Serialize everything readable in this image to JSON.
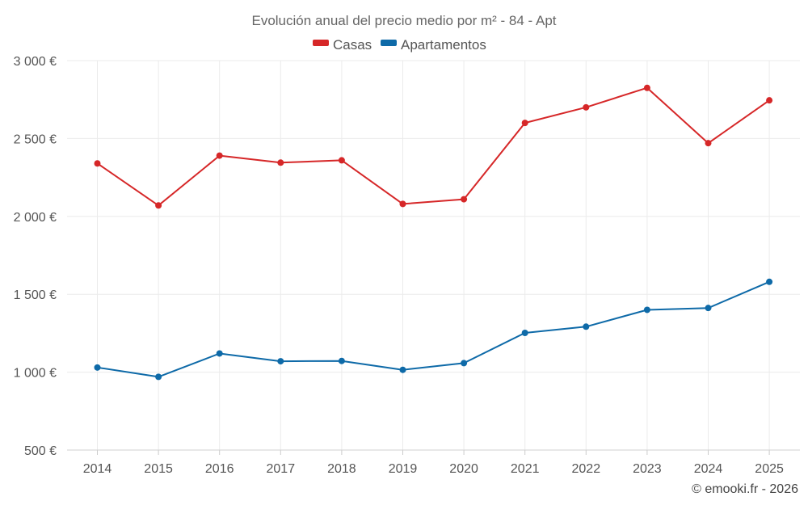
{
  "chart_data": {
    "type": "line",
    "title": "Evolución anual del precio medio por m² - 84 - Apt",
    "x": [
      "2014",
      "2015",
      "2016",
      "2017",
      "2018",
      "2019",
      "2020",
      "2021",
      "2022",
      "2023",
      "2024",
      "2025"
    ],
    "series": [
      {
        "name": "Casas",
        "color": "#d62728",
        "values": [
          2340,
          2070,
          2390,
          2345,
          2360,
          2080,
          2110,
          2600,
          2700,
          2825,
          2470,
          2745
        ]
      },
      {
        "name": "Apartamentos",
        "color": "#0e6aa8",
        "values": [
          1030,
          970,
          1120,
          1070,
          1072,
          1015,
          1058,
          1252,
          1292,
          1400,
          1412,
          1580
        ]
      }
    ],
    "ylim": [
      500,
      3000
    ],
    "yticks": [
      500,
      1000,
      1500,
      2000,
      2500,
      3000
    ],
    "ytick_labels": [
      "500 €",
      "1 000 €",
      "1 500 €",
      "2 000 €",
      "2 500 €",
      "3 000 €"
    ],
    "grid": true,
    "legend_position": "top-center"
  },
  "credit": "© emooki.fr - 2026"
}
